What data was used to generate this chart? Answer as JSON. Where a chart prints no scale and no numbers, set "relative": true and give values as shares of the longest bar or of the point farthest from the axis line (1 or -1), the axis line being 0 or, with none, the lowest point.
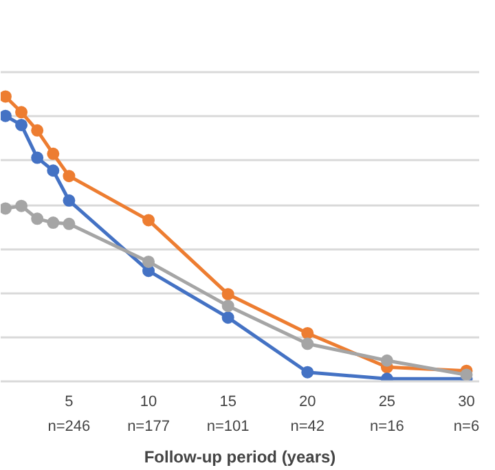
{
  "chart_data": {
    "type": "line",
    "relative": true,
    "xlabel": "Follow-up period (years)",
    "x": [
      1,
      2,
      3,
      4,
      5,
      10,
      15,
      20,
      25,
      30
    ],
    "xlim": [
      0.7,
      30.8
    ],
    "xticks": [
      5,
      10,
      15,
      20,
      25,
      30
    ],
    "annotations": [
      "n=246",
      "n=177",
      "n=101",
      "n=42",
      "n=16",
      "n=6"
    ],
    "series": [
      {
        "color": "#ed7d31",
        "values": [
          1,
          0.945,
          0.881,
          0.799,
          0.721,
          0.566,
          0.306,
          0.169,
          0.05,
          0.037
        ]
      },
      {
        "color": "#4472c4",
        "values": [
          0.932,
          0.9,
          0.785,
          0.74,
          0.635,
          0.388,
          0.224,
          0.032,
          0.009,
          0.009
        ]
      },
      {
        "color": "#a5a5a5",
        "values": [
          0.607,
          0.616,
          0.571,
          0.557,
          0.553,
          0.42,
          0.265,
          0.132,
          0.073,
          0.023
        ]
      }
    ],
    "grid": "y",
    "marker": "circle",
    "line_style": "solid"
  }
}
